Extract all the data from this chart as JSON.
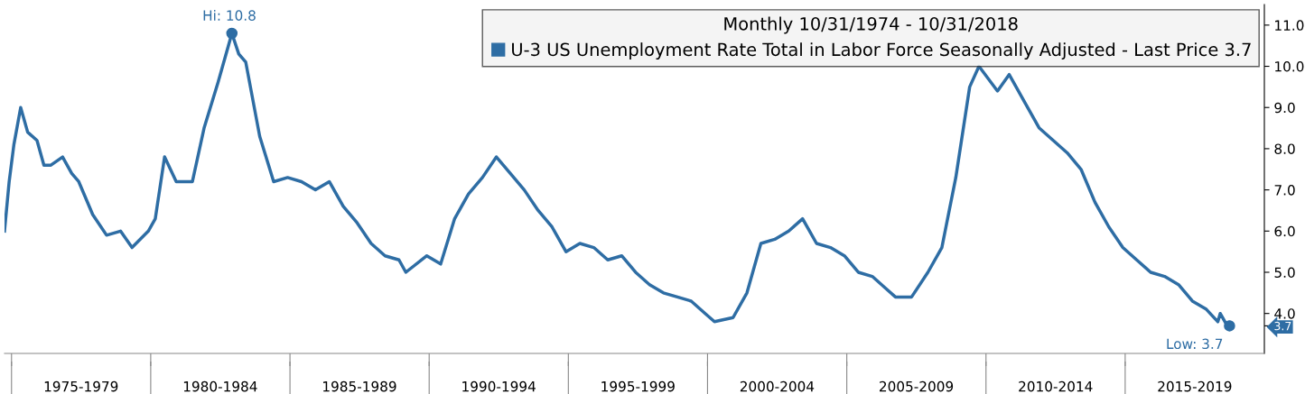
{
  "chart_data": {
    "type": "line",
    "legend_title": "Monthly 10/31/1974 - 10/31/2018",
    "x": [
      "1974-10",
      "1974-12",
      "1975-02",
      "1975-05",
      "1975-08",
      "1975-12",
      "1976-03",
      "1976-06",
      "1976-11",
      "1977-03",
      "1977-06",
      "1977-12",
      "1978-06",
      "1978-12",
      "1979-05",
      "1979-12",
      "1980-03",
      "1980-07",
      "1980-12",
      "1981-04",
      "1981-07",
      "1981-12",
      "1982-06",
      "1982-12",
      "1983-03",
      "1983-06",
      "1983-12",
      "1984-06",
      "1984-12",
      "1985-06",
      "1985-12",
      "1986-06",
      "1986-12",
      "1987-06",
      "1987-12",
      "1988-06",
      "1988-12",
      "1989-03",
      "1989-12",
      "1990-06",
      "1990-12",
      "1991-06",
      "1991-12",
      "1992-06",
      "1992-12",
      "1993-06",
      "1993-12",
      "1994-06",
      "1994-12",
      "1995-06",
      "1995-12",
      "1996-06",
      "1996-12",
      "1997-06",
      "1997-12",
      "1998-06",
      "1998-12",
      "1999-06",
      "1999-12",
      "2000-04",
      "2000-12",
      "2001-06",
      "2001-12",
      "2002-06",
      "2002-12",
      "2003-06",
      "2003-12",
      "2004-06",
      "2004-12",
      "2005-06",
      "2005-12",
      "2006-06",
      "2006-10",
      "2007-05",
      "2007-12",
      "2008-06",
      "2008-12",
      "2009-06",
      "2009-10",
      "2010-06",
      "2010-11",
      "2011-06",
      "2011-12",
      "2012-06",
      "2012-12",
      "2013-06",
      "2013-12",
      "2014-06",
      "2014-12",
      "2015-06",
      "2015-12",
      "2016-06",
      "2016-12",
      "2017-06",
      "2017-12",
      "2018-05",
      "2018-06",
      "2018-09",
      "2018-10"
    ],
    "series": [
      {
        "name": "U-3 US Unemployment Rate Total in Labor Force Seasonally Adjusted - Last Price 3.7",
        "color": "#2e6da4",
        "values": [
          6.0,
          7.2,
          8.1,
          9.0,
          8.4,
          8.2,
          7.6,
          7.6,
          7.8,
          7.4,
          7.2,
          6.4,
          5.9,
          6.0,
          5.6,
          6.0,
          6.3,
          7.8,
          7.2,
          7.2,
          7.2,
          8.5,
          9.6,
          10.8,
          10.3,
          10.1,
          8.3,
          7.2,
          7.3,
          7.2,
          7.0,
          7.2,
          6.6,
          6.2,
          5.7,
          5.4,
          5.3,
          5.0,
          5.4,
          5.2,
          6.3,
          6.9,
          7.3,
          7.8,
          7.4,
          7.0,
          6.5,
          6.1,
          5.5,
          5.7,
          5.6,
          5.3,
          5.4,
          5.0,
          4.7,
          4.5,
          4.4,
          4.3,
          4.0,
          3.8,
          3.9,
          4.5,
          5.7,
          5.8,
          6.0,
          6.3,
          5.7,
          5.6,
          5.4,
          5.0,
          4.9,
          4.6,
          4.4,
          4.4,
          5.0,
          5.6,
          7.3,
          9.5,
          10.0,
          9.4,
          9.8,
          9.1,
          8.5,
          8.2,
          7.9,
          7.5,
          6.7,
          6.1,
          5.6,
          5.3,
          5.0,
          4.9,
          4.7,
          4.3,
          4.1,
          3.8,
          4.0,
          3.7,
          3.7
        ]
      }
    ],
    "ylim": [
      3.03,
      11.5
    ],
    "yticks": [
      {
        "value": 4,
        "label": "4.0"
      },
      {
        "value": 5,
        "label": "5.0"
      },
      {
        "value": 6,
        "label": "6.0"
      },
      {
        "value": 7,
        "label": "7.0"
      },
      {
        "value": 8,
        "label": "8.0"
      },
      {
        "value": 9,
        "label": "9.0"
      },
      {
        "value": 10,
        "label": "10.0"
      },
      {
        "value": 11,
        "label": "11.0"
      },
      {
        "value": 3.7,
        "label": "3.7"
      }
    ],
    "xlim": [
      "1974-10",
      "2020-01"
    ],
    "xticks": [
      {
        "value": "1975-01",
        "label": null
      },
      {
        "value": "1977-07",
        "label": "1975-1979"
      },
      {
        "value": "1980-01",
        "label": null
      },
      {
        "value": "1982-07",
        "label": "1980-1984"
      },
      {
        "value": "1985-01",
        "label": null
      },
      {
        "value": "1987-07",
        "label": "1985-1989"
      },
      {
        "value": "1990-01",
        "label": null
      },
      {
        "value": "1992-07",
        "label": "1990-1994"
      },
      {
        "value": "1995-01",
        "label": null
      },
      {
        "value": "1997-07",
        "label": "1995-1999"
      },
      {
        "value": "2000-01",
        "label": null
      },
      {
        "value": "2002-07",
        "label": "2000-2004"
      },
      {
        "value": "2005-01",
        "label": null
      },
      {
        "value": "2007-07",
        "label": "2005-2009"
      },
      {
        "value": "2010-01",
        "label": null
      },
      {
        "value": "2012-07",
        "label": "2010-2014"
      },
      {
        "value": "2015-01",
        "label": null
      },
      {
        "value": "2017-07",
        "label": "2015-2019"
      }
    ],
    "annotations": [
      {
        "text": "Hi: 10.8",
        "x": "1982-12",
        "y": 10.8
      },
      {
        "text": "Low: 3.7",
        "x": "2018-10",
        "y": 3.7
      }
    ],
    "legend": "top right",
    "grid": false,
    "marker": "none",
    "line_style": "solid"
  }
}
